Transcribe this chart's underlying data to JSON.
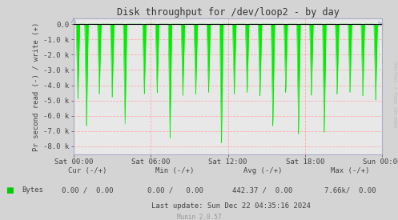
{
  "title": "Disk throughput for /dev/loop2 - by day",
  "ylabel": "Pr second read (-) / write (+)",
  "background_color": "#d4d4d4",
  "plot_bg_color": "#e8e8e8",
  "grid_color": "#ffaaaa",
  "line_color": "#00ee00",
  "axis_color": "#aaaacc",
  "ylim": [
    -8500,
    350
  ],
  "yticks": [
    0,
    -1000,
    -2000,
    -3000,
    -4000,
    -5000,
    -6000,
    -7000,
    -8000
  ],
  "ytick_labels": [
    "0.0",
    "-1.0 k",
    "-2.0 k",
    "-3.0 k",
    "-4.0 k",
    "-5.0 k",
    "-6.0 k",
    "-7.0 k",
    "-8.0 k"
  ],
  "x_start": 0,
  "x_end": 86400,
  "xtick_positions": [
    0,
    21600,
    43200,
    64800,
    86400
  ],
  "xtick_labels": [
    "Sat 00:00",
    "Sat 06:00",
    "Sat 12:00",
    "Sat 18:00",
    "Sun 00:00"
  ],
  "title_color": "#333333",
  "tick_color": "#444444",
  "legend_label": "Bytes",
  "legend_color": "#00cc00",
  "cur_label": "Cur (-/+)",
  "min_label": "Min (-/+)",
  "avg_label": "Avg (-/+)",
  "max_label": "Max (-/+)",
  "cur_val": "0.00 /  0.00",
  "min_val": "0.00 /   0.00",
  "avg_val": "442.37 /  0.00",
  "max_val": "7.66k/  0.00",
  "last_update": "Last update: Sun Dec 22 04:35:16 2024",
  "munin_version": "Munin 2.0.57",
  "watermark": "RRDTOOL / TOBI OETIKER",
  "spike_times": [
    1200,
    3600,
    7200,
    10800,
    14400,
    19800,
    23400,
    27000,
    30600,
    34200,
    37800,
    41400,
    45000,
    48600,
    52200,
    55800,
    59400,
    63000,
    66600,
    70200,
    73800,
    77400,
    81000,
    84600
  ],
  "spike_depths": [
    -4900,
    -6700,
    -4600,
    -4800,
    -6600,
    -4600,
    -4500,
    -7500,
    -4700,
    -4600,
    -4500,
    -7800,
    -4600,
    -4500,
    -4700,
    -6700,
    -4500,
    -7200,
    -4700,
    -7100,
    -4600,
    -4500,
    -4700,
    -5000
  ]
}
